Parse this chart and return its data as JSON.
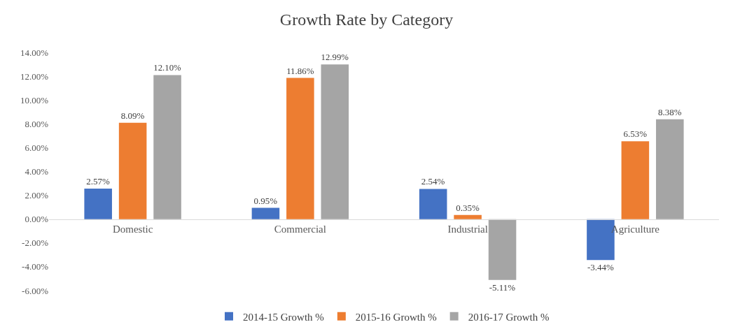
{
  "chart_data": {
    "type": "bar",
    "title": "Growth Rate by Category",
    "categories": [
      "Domestic",
      "Commercial",
      "Industrial",
      "Agriculture"
    ],
    "series": [
      {
        "name": "2014-15 Growth %",
        "color": "#4472c4",
        "values": [
          2.57,
          0.95,
          2.54,
          -3.44
        ],
        "value_labels": [
          "2.57%",
          "0.95%",
          "2.54%",
          "-3.44%"
        ]
      },
      {
        "name": "2015-16 Growth %",
        "color": "#ed7d31",
        "values": [
          8.09,
          11.86,
          0.35,
          6.53
        ],
        "value_labels": [
          "8.09%",
          "11.86%",
          "0.35%",
          "6.53%"
        ]
      },
      {
        "name": "2016-17 Growth %",
        "color": "#a5a5a5",
        "values": [
          12.1,
          12.99,
          -5.11,
          8.38
        ],
        "value_labels": [
          "12.10%",
          "12.99%",
          "-5.11%",
          "8.38%"
        ]
      }
    ],
    "ylim": [
      -6,
      14
    ],
    "yticks": [
      {
        "value": -6,
        "label": "-6.00%"
      },
      {
        "value": -4,
        "label": "-4.00%"
      },
      {
        "value": -2,
        "label": "-2.00%"
      },
      {
        "value": 0,
        "label": "0.00%"
      },
      {
        "value": 2,
        "label": "2.00%"
      },
      {
        "value": 4,
        "label": "4.00%"
      },
      {
        "value": 6,
        "label": "6.00%"
      },
      {
        "value": 8,
        "label": "8.00%"
      },
      {
        "value": 10,
        "label": "10.00%"
      },
      {
        "value": 12,
        "label": "12.00%"
      },
      {
        "value": 14,
        "label": "14.00%"
      }
    ],
    "legend": "bottom"
  }
}
